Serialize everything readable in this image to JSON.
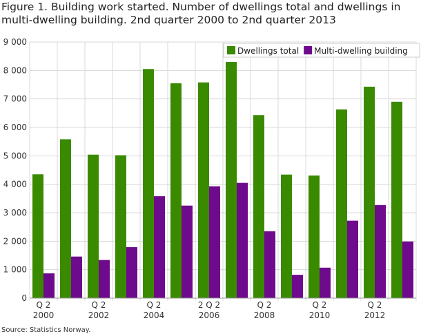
{
  "chart_data": {
    "type": "bar",
    "title": "Figure 1. Building work started. Number of dwellings total and dwellings in multi-dwelling building. 2nd quarter 2000 to 2nd quarter 2013",
    "source": "Source: Statistics Norway.",
    "categories": [
      "2000",
      "2001",
      "2002",
      "2003",
      "2004",
      "2005",
      "2006",
      "2007",
      "2008",
      "2009",
      "2010",
      "2011",
      "2012",
      "2013"
    ],
    "x_tick_labels": [
      {
        "index": 0,
        "line1": "Q 2",
        "line2": "2000"
      },
      {
        "index": 2,
        "line1": "Q 2",
        "line2": "2002"
      },
      {
        "index": 4,
        "line1": "Q 2",
        "line2": "2004"
      },
      {
        "index": 6,
        "line1": "2 Q 2",
        "line2": "2006"
      },
      {
        "index": 8,
        "line1": "Q 2",
        "line2": "2008"
      },
      {
        "index": 10,
        "line1": "Q 2",
        "line2": "2010"
      },
      {
        "index": 12,
        "line1": "Q 2",
        "line2": "2012"
      }
    ],
    "series": [
      {
        "name": "Dwellings total",
        "color": "#3a8a00",
        "values": [
          4350,
          5580,
          5040,
          5020,
          8050,
          7550,
          7580,
          8300,
          6430,
          4340,
          4310,
          6630,
          7430,
          6900
        ]
      },
      {
        "name": "Multi-dwelling building",
        "color": "#6e0a8c",
        "values": [
          870,
          1460,
          1340,
          1790,
          3580,
          3250,
          3930,
          4050,
          2350,
          820,
          1070,
          2720,
          3270,
          1990
        ]
      }
    ],
    "ylim": [
      0,
      9000
    ],
    "y_ticks": [
      "0",
      "1 000",
      "2 000",
      "3 000",
      "4 000",
      "5 000",
      "6 000",
      "7 000",
      "8 000",
      "9 000"
    ],
    "grid": "horizontal and vertical separators",
    "legend": "top-right"
  }
}
